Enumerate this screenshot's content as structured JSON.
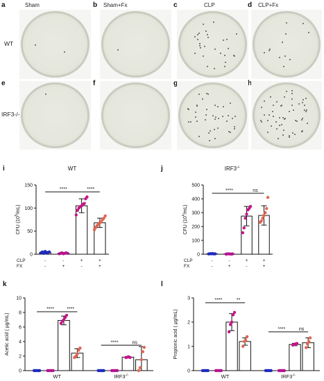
{
  "photo_panels": {
    "columns": [
      {
        "letter": "a",
        "title": "Sham"
      },
      {
        "letter": "b",
        "title": "Sham+Fx"
      },
      {
        "letter": "c",
        "title": "CLP"
      },
      {
        "letter": "d",
        "title": "CLP+Fx"
      }
    ],
    "row2_letters": [
      "e",
      "f",
      "g",
      "h"
    ],
    "rows": [
      "WT",
      "IRF3-/-"
    ],
    "colonies": [
      [
        {
          "tile": 0,
          "count": 2
        },
        {
          "tile": 1,
          "count": 1
        },
        {
          "tile": 2,
          "count": 28
        },
        {
          "tile": 3,
          "count": 12
        }
      ],
      [
        {
          "tile": 0,
          "count": 1
        },
        {
          "tile": 1,
          "count": 0
        },
        {
          "tile": 2,
          "count": 40
        },
        {
          "tile": 3,
          "count": 55
        }
      ]
    ]
  },
  "chart_data": [
    {
      "panel": "i",
      "type": "bar",
      "title": "WT",
      "ylabel": "CFU (10^5/mL)",
      "ylim": [
        0,
        150
      ],
      "yticks": [
        0,
        50,
        100,
        150
      ],
      "row_labels": [
        "CLP",
        "FX"
      ],
      "conditions": [
        [
          "-",
          "-"
        ],
        [
          "-",
          "+"
        ],
        [
          "+",
          "-"
        ],
        [
          "+",
          "+"
        ]
      ],
      "values": [
        4,
        2,
        105,
        68
      ],
      "err": [
        2,
        1.5,
        15,
        10
      ],
      "colors": [
        "#1e2bbd",
        "#b5138f",
        "#c51687",
        "#e16552"
      ],
      "points": [
        [
          3,
          5,
          2,
          6,
          4,
          3,
          5
        ],
        [
          1,
          2,
          3,
          1,
          2,
          3,
          2
        ],
        [
          85,
          95,
          100,
          103,
          105,
          108,
          110,
          120,
          124
        ],
        [
          53,
          58,
          62,
          65,
          68,
          70,
          75,
          78,
          83
        ]
      ],
      "sig": [
        {
          "from": 0,
          "to": 2,
          "label": "****",
          "y": 135
        },
        {
          "from": 2,
          "to": 3,
          "label": "****",
          "y": 135
        }
      ]
    },
    {
      "panel": "j",
      "type": "bar",
      "title": "IRF3-/-",
      "ylabel": "CFU (10^4/mL)",
      "ylim": [
        0,
        500
      ],
      "yticks": [
        0,
        100,
        200,
        300,
        400,
        500
      ],
      "row_labels": [
        "CLP",
        "FX"
      ],
      "conditions": [
        [
          "-",
          "-"
        ],
        [
          "-",
          "+"
        ],
        [
          "+",
          "-"
        ],
        [
          "+",
          "+"
        ]
      ],
      "values": [
        3,
        2,
        275,
        280
      ],
      "err": [
        2,
        1,
        70,
        70
      ],
      "colors": [
        "#1e2bbd",
        "#b5138f",
        "#c51687",
        "#e16552"
      ],
      "points": [
        [
          2,
          4,
          3,
          5,
          2,
          3
        ],
        [
          1,
          2,
          3,
          2,
          1,
          2
        ],
        [
          155,
          190,
          260,
          290,
          320,
          330,
          345
        ],
        [
          230,
          240,
          260,
          280,
          300,
          330,
          410
        ]
      ],
      "sig": [
        {
          "from": 0,
          "to": 2,
          "label": "****",
          "y": 440
        },
        {
          "from": 2,
          "to": 3,
          "label": "ns",
          "y": 440
        }
      ]
    },
    {
      "panel": "k",
      "type": "bar",
      "ylabel": "Acetic acid ( μg/mL)",
      "ylim": [
        0,
        10
      ],
      "yticks": [
        0,
        2,
        4,
        6,
        8,
        10
      ],
      "categories": [
        "WT",
        "IRF3-/-"
      ],
      "values": [
        [
          0,
          0,
          6.9,
          2.4
        ],
        [
          0,
          0,
          1.85,
          1.5
        ]
      ],
      "err": [
        [
          0,
          0,
          0.6,
          0.6
        ],
        [
          0,
          0,
          0.1,
          1.8
        ]
      ],
      "colors": [
        "#1e2bbd",
        "#b5138f",
        "#c51687",
        "#e16552"
      ],
      "points": [
        [
          [
            0,
            0,
            0,
            0,
            0
          ],
          [
            0,
            0,
            0,
            0,
            0
          ],
          [
            6.5,
            6.8,
            7.0,
            7.3,
            7.6
          ],
          [
            1.8,
            2.0,
            2.3,
            2.8,
            3.1
          ]
        ],
        [
          [
            0,
            0,
            0,
            0,
            0
          ],
          [
            0,
            0,
            0,
            0,
            0
          ],
          [
            1.8,
            1.85,
            1.9,
            1.8
          ],
          [
            0,
            0.4,
            1.5,
            2.6,
            3.2
          ]
        ]
      ],
      "sig": [
        {
          "group": 0,
          "from": 0,
          "to": 2,
          "label": "****",
          "y": 8.1
        },
        {
          "group": 0,
          "from": 2,
          "to": 3,
          "label": "****",
          "y": 8.1
        },
        {
          "group": 1,
          "from": 0,
          "to": 2,
          "label": "****",
          "y": 3.5
        },
        {
          "group": 1,
          "from": 2,
          "to": 3,
          "label": "ns",
          "y": 3.5
        }
      ]
    },
    {
      "panel": "l",
      "type": "bar",
      "ylabel": "Propionic acid ( μg/mL)",
      "ylim": [
        0,
        3
      ],
      "yticks": [
        0,
        1,
        2,
        3
      ],
      "categories": [
        "WT",
        "IRF3-/-"
      ],
      "values": [
        [
          0,
          0,
          2.0,
          1.2
        ],
        [
          0,
          0,
          1.08,
          1.15
        ]
      ],
      "err": [
        [
          0,
          0,
          0.35,
          0.15
        ],
        [
          0,
          0,
          0.05,
          0.2
        ]
      ],
      "colors": [
        "#1e2bbd",
        "#b5138f",
        "#c51687",
        "#e16552"
      ],
      "points": [
        [
          [
            0,
            0,
            0,
            0,
            0
          ],
          [
            0,
            0,
            0,
            0,
            0
          ],
          [
            1.6,
            1.9,
            2.0,
            2.3,
            2.4
          ],
          [
            1.0,
            1.2,
            1.25,
            1.4
          ]
        ],
        [
          [
            0,
            0,
            0,
            0,
            0
          ],
          [
            0,
            0,
            0,
            0,
            0
          ],
          [
            1.05,
            1.08,
            1.1,
            1.12
          ],
          [
            0.95,
            1.1,
            1.2,
            1.35
          ]
        ]
      ],
      "sig": [
        {
          "group": 0,
          "from": 0,
          "to": 2,
          "label": "****",
          "y": 2.8
        },
        {
          "group": 0,
          "from": 2,
          "to": 3,
          "label": "**",
          "y": 2.8
        },
        {
          "group": 1,
          "from": 0,
          "to": 2,
          "label": "****",
          "y": 1.6
        },
        {
          "group": 1,
          "from": 2,
          "to": 3,
          "label": "ns",
          "y": 1.6
        }
      ]
    }
  ]
}
